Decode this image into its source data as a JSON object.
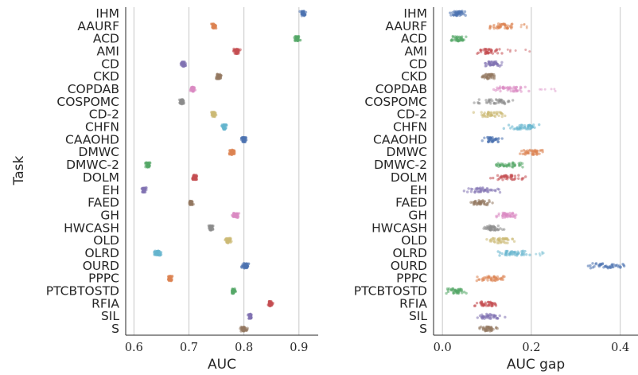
{
  "figure": {
    "ylabel": "Task",
    "panels": [
      {
        "xlabel": "AUC",
        "xticks": [
          "0.6",
          "0.7",
          "0.8",
          "0.9"
        ]
      },
      {
        "xlabel": "AUC gap",
        "xticks": [
          "0.0",
          "0.2",
          "0.4"
        ]
      }
    ]
  },
  "chart_data": [
    {
      "type": "scatter",
      "subtype": "strip",
      "title": "",
      "xlabel": "AUC",
      "ylabel": "Task",
      "xlim": [
        0.585,
        0.935
      ],
      "xticks": [
        0.6,
        0.7,
        0.8,
        0.9
      ],
      "grid": "vertical",
      "legend": "none",
      "categories": [
        "IHM",
        "AAURF",
        "ACD",
        "AMI",
        "CD",
        "CKD",
        "COPDAB",
        "COSPOMC",
        "CD-2",
        "CHFN",
        "CAAOHD",
        "DMWC",
        "DMWC-2",
        "DOLM",
        "EH",
        "FAED",
        "GH",
        "HWCASH",
        "OLD",
        "OLRD",
        "OURD",
        "PPPC",
        "PTCBTOSTD",
        "RFIA",
        "SIL",
        "S"
      ],
      "colors": [
        "#4C72B0",
        "#DD8452",
        "#55A868",
        "#C44E52",
        "#8172B3",
        "#937860",
        "#DA8BC3",
        "#8C8C8C",
        "#CCB974",
        "#64B5CD",
        "#4C72B0",
        "#DD8452",
        "#55A868",
        "#C44E52",
        "#8172B3",
        "#937860",
        "#DA8BC3",
        "#8C8C8C",
        "#CCB974",
        "#64B5CD",
        "#4C72B0",
        "#DD8452",
        "#55A868",
        "#C44E52",
        "#8172B3",
        "#937860"
      ],
      "values": [
        {
          "center": 0.908,
          "spread": 0.014,
          "tail": 0.0
        },
        {
          "center": 0.746,
          "spread": 0.014,
          "tail": 0.0
        },
        {
          "center": 0.897,
          "spread": 0.014,
          "tail": 0.0
        },
        {
          "center": 0.787,
          "spread": 0.014,
          "tail": 0.0
        },
        {
          "center": 0.69,
          "spread": 0.012,
          "tail": 0.0
        },
        {
          "center": 0.754,
          "spread": 0.012,
          "tail": 0.0
        },
        {
          "center": 0.706,
          "spread": 0.012,
          "tail": 0.0
        },
        {
          "center": 0.688,
          "spread": 0.016,
          "tail": 0.0
        },
        {
          "center": 0.745,
          "spread": 0.012,
          "tail": 0.0
        },
        {
          "center": 0.764,
          "spread": 0.012,
          "tail": 0.0
        },
        {
          "center": 0.8,
          "spread": 0.012,
          "tail": 0.0
        },
        {
          "center": 0.779,
          "spread": 0.018,
          "tail": 0.0
        },
        {
          "center": 0.625,
          "spread": 0.014,
          "tail": 0.0
        },
        {
          "center": 0.71,
          "spread": 0.013,
          "tail": 0.0
        },
        {
          "center": 0.618,
          "spread": 0.013,
          "tail": 0.0
        },
        {
          "center": 0.703,
          "spread": 0.012,
          "tail": 0.0
        },
        {
          "center": 0.785,
          "spread": 0.018,
          "tail": 0.0
        },
        {
          "center": 0.74,
          "spread": 0.014,
          "tail": 0.0
        },
        {
          "center": 0.771,
          "spread": 0.014,
          "tail": 0.0
        },
        {
          "center": 0.643,
          "spread": 0.02,
          "tail": 0.0
        },
        {
          "center": 0.803,
          "spread": 0.018,
          "tail": 0.0
        },
        {
          "center": 0.666,
          "spread": 0.012,
          "tail": 0.0
        },
        {
          "center": 0.781,
          "spread": 0.012,
          "tail": 0.0
        },
        {
          "center": 0.848,
          "spread": 0.012,
          "tail": 0.0
        },
        {
          "center": 0.811,
          "spread": 0.01,
          "tail": 0.0
        },
        {
          "center": 0.8,
          "spread": 0.016,
          "tail": 0.0
        }
      ]
    },
    {
      "type": "scatter",
      "subtype": "strip",
      "title": "",
      "xlabel": "AUC gap",
      "ylabel": "",
      "xlim": [
        -0.02,
        0.44
      ],
      "xticks": [
        0.0,
        0.2,
        0.4
      ],
      "grid": "vertical",
      "legend": "none",
      "categories": [
        "IHM",
        "AAURF",
        "ACD",
        "AMI",
        "CD",
        "CKD",
        "COPDAB",
        "COSPOMC",
        "CD-2",
        "CHFN",
        "CAAOHD",
        "DMWC",
        "DMWC-2",
        "DOLM",
        "EH",
        "FAED",
        "GH",
        "HWCASH",
        "OLD",
        "OLRD",
        "OURD",
        "PPPC",
        "PTCBTOSTD",
        "RFIA",
        "SIL",
        "S"
      ],
      "colors": [
        "#4C72B0",
        "#DD8452",
        "#55A868",
        "#C44E52",
        "#8172B3",
        "#937860",
        "#DA8BC3",
        "#8C8C8C",
        "#CCB974",
        "#64B5CD",
        "#4C72B0",
        "#DD8452",
        "#55A868",
        "#C44E52",
        "#8172B3",
        "#937860",
        "#DA8BC3",
        "#8C8C8C",
        "#CCB974",
        "#64B5CD",
        "#4C72B0",
        "#DD8452",
        "#55A868",
        "#C44E52",
        "#8172B3",
        "#937860"
      ],
      "values": [
        {
          "center": 0.035,
          "spread": 0.045,
          "tail": 0.0
        },
        {
          "center": 0.135,
          "spread": 0.075,
          "tail": 0.02
        },
        {
          "center": 0.035,
          "spread": 0.055,
          "tail": 0.0
        },
        {
          "center": 0.105,
          "spread": 0.08,
          "tail": 0.06
        },
        {
          "center": 0.115,
          "spread": 0.05,
          "tail": 0.0
        },
        {
          "center": 0.105,
          "spread": 0.05,
          "tail": 0.0
        },
        {
          "center": 0.15,
          "spread": 0.11,
          "tail": 0.05
        },
        {
          "center": 0.12,
          "spread": 0.13,
          "tail": 0.0
        },
        {
          "center": 0.105,
          "spread": 0.09,
          "tail": 0.0
        },
        {
          "center": 0.175,
          "spread": 0.11,
          "tail": 0.0
        },
        {
          "center": 0.11,
          "spread": 0.06,
          "tail": 0.0
        },
        {
          "center": 0.195,
          "spread": 0.08,
          "tail": 0.0
        },
        {
          "center": 0.145,
          "spread": 0.12,
          "tail": 0.0
        },
        {
          "center": 0.15,
          "spread": 0.11,
          "tail": 0.0
        },
        {
          "center": 0.09,
          "spread": 0.1,
          "tail": 0.0
        },
        {
          "center": 0.085,
          "spread": 0.07,
          "tail": 0.0
        },
        {
          "center": 0.145,
          "spread": 0.09,
          "tail": 0.0
        },
        {
          "center": 0.115,
          "spread": 0.06,
          "tail": 0.0
        },
        {
          "center": 0.135,
          "spread": 0.09,
          "tail": 0.0
        },
        {
          "center": 0.16,
          "spread": 0.1,
          "tail": 0.04
        },
        {
          "center": 0.37,
          "spread": 0.12,
          "tail": 0.0
        },
        {
          "center": 0.11,
          "spread": 0.09,
          "tail": 0.0
        },
        {
          "center": 0.03,
          "spread": 0.06,
          "tail": 0.0
        },
        {
          "center": 0.095,
          "spread": 0.08,
          "tail": 0.0
        },
        {
          "center": 0.105,
          "spread": 0.08,
          "tail": 0.0
        },
        {
          "center": 0.1,
          "spread": 0.08,
          "tail": 0.0
        }
      ]
    }
  ]
}
